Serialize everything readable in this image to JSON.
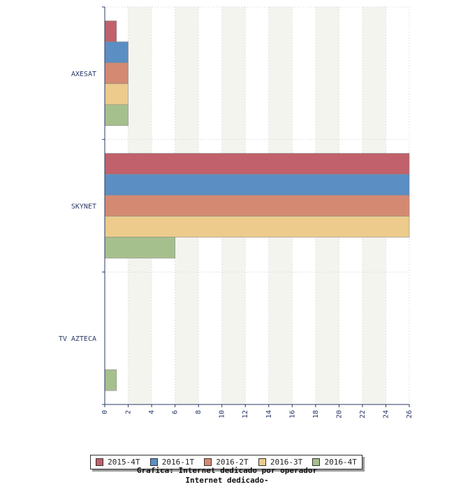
{
  "chart_data": {
    "type": "bar",
    "orientation": "horizontal",
    "categories": [
      "AXESAT",
      "SKYNET",
      "TV AZTECA"
    ],
    "series": [
      {
        "name": "2015-4T",
        "color": "#c0616b",
        "values": [
          1,
          26,
          0
        ]
      },
      {
        "name": "2016-1T",
        "color": "#5b8fc3",
        "values": [
          2,
          26,
          0
        ]
      },
      {
        "name": "2016-2T",
        "color": "#d48a72",
        "values": [
          2,
          26,
          0
        ]
      },
      {
        "name": "2016-3T",
        "color": "#eccb8c",
        "values": [
          2,
          26,
          0
        ]
      },
      {
        "name": "2016-4T",
        "color": "#a6c08d",
        "values": [
          2,
          6,
          1
        ]
      }
    ],
    "xlim": [
      0,
      26
    ],
    "x_ticks": [
      "0",
      "2",
      "4",
      "6",
      "8",
      "10",
      "12",
      "14",
      "16",
      "18",
      "20",
      "22",
      "24",
      "26"
    ],
    "grid": true,
    "legend_position": "bottom",
    "caption_line1": "Grafica: Internet dedicado por operador",
    "caption_line2": "Internet dedicado-"
  }
}
